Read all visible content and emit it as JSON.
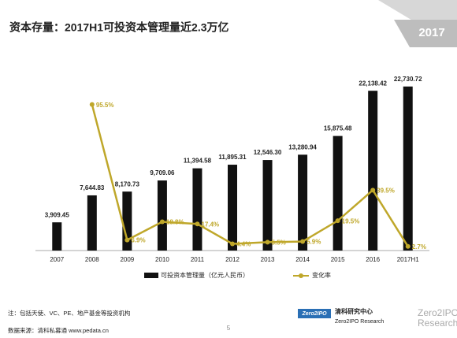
{
  "chart_data": {
    "type": "bar_line",
    "title": "资本存量：2017H1可投资本管理量近2.3万亿",
    "badge": "2017",
    "categories": [
      "2007",
      "2008",
      "2009",
      "2010",
      "2011",
      "2012",
      "2013",
      "2014",
      "2015",
      "2016",
      "2017H1"
    ],
    "series": [
      {
        "name": "可投资本管理量（亿元人民币）",
        "type": "bar",
        "color": "#111111",
        "values": [
          3909.45,
          7644.83,
          8170.73,
          9709.06,
          11394.58,
          11895.31,
          12546.3,
          13280.94,
          15875.48,
          22138.42,
          22730.72
        ],
        "value_labels": [
          "3,909.45",
          "7,644.83",
          "8,170.73",
          "9,709.06",
          "11,394.58",
          "11,895.31",
          "12,546.30",
          "13,280.94",
          "15,875.48",
          "22,138.42",
          "22,730.72"
        ]
      },
      {
        "name": "变化率",
        "type": "line",
        "axis": "y2",
        "color": "#bfa72a",
        "values": [
          null,
          95.5,
          6.9,
          18.8,
          17.4,
          4.4,
          5.5,
          5.9,
          19.5,
          39.5,
          2.7
        ],
        "value_labels": [
          null,
          "95.5%",
          "6.9%",
          "18.8%",
          "17.4%",
          "4.4%",
          "5.5%",
          "5.9%",
          "19.5%",
          "39.5%",
          "2.7%"
        ]
      }
    ],
    "ylim": [
      0,
      25000
    ],
    "y2lim": [
      0,
      118
    ]
  },
  "footer": {
    "note": "注：包括天使、VC、PE、地产基金等投资机构",
    "source": "数据来源：清科私募通 www.pedata.cn",
    "page": "5",
    "logo_box": "Zero2IPO",
    "org_cn": "清科研究中心",
    "org_en": "Zero2IPO Research",
    "org_big1": "Zero2IPO",
    "org_big2": "Research"
  }
}
